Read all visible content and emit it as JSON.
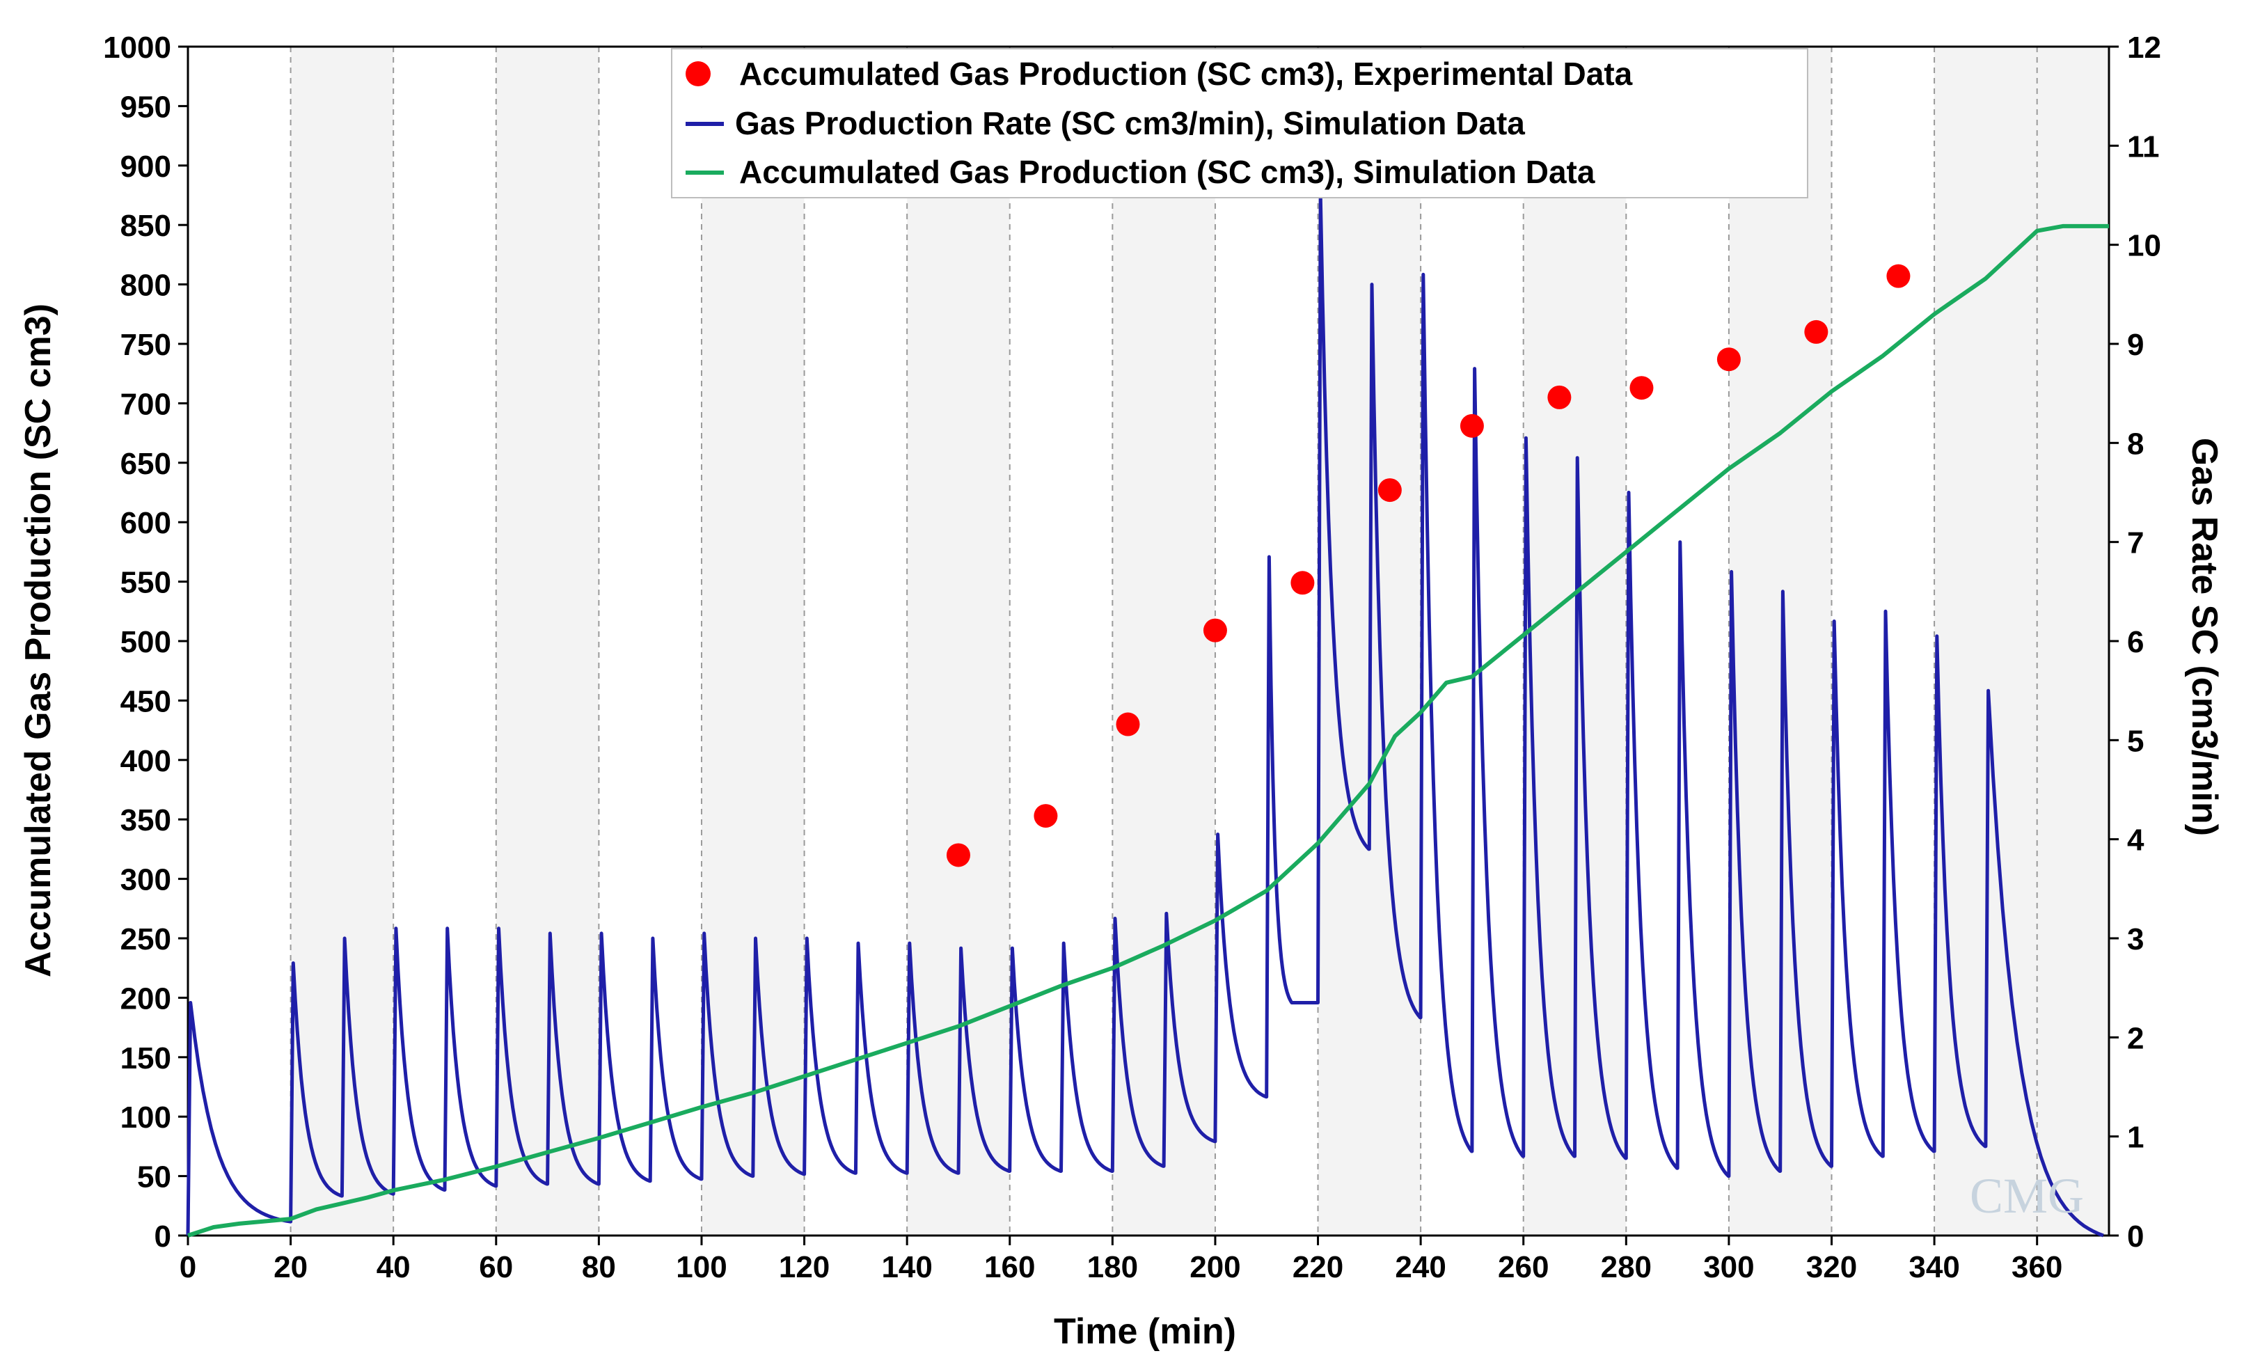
{
  "chart_data": {
    "type": "line",
    "xlabel": "Time (min)",
    "ylabel_left": "Accumulated Gas Production (SC cm3)",
    "ylabel_right": "Gas Rate SC (cm3/min)",
    "xlim": [
      0,
      374
    ],
    "ylim_left": [
      0,
      1000
    ],
    "ylim_right": [
      0,
      12
    ],
    "x_ticks": [
      0,
      20,
      40,
      60,
      80,
      100,
      120,
      140,
      160,
      180,
      200,
      220,
      240,
      260,
      280,
      300,
      320,
      340,
      360
    ],
    "y_left_ticks": [
      0,
      50,
      100,
      150,
      200,
      250,
      300,
      350,
      400,
      450,
      500,
      550,
      600,
      650,
      700,
      750,
      800,
      850,
      900,
      950,
      1000
    ],
    "y_right_ticks": [
      0,
      1,
      2,
      3,
      4,
      5,
      6,
      7,
      8,
      9,
      10,
      11,
      12
    ],
    "shaded_bands": [
      [
        20,
        40
      ],
      [
        60,
        80
      ],
      [
        100,
        120
      ],
      [
        140,
        160
      ],
      [
        180,
        200
      ],
      [
        220,
        240
      ],
      [
        260,
        280
      ],
      [
        300,
        320
      ],
      [
        340,
        374
      ]
    ],
    "legend_location": "top-center",
    "watermark": "CMG",
    "series": [
      {
        "name": "Accumulated Gas Production (SC cm3), Experimental Data",
        "kind": "scatter",
        "axis": "left",
        "color": "#ff0000",
        "points": [
          [
            150,
            320
          ],
          [
            167,
            353
          ],
          [
            183,
            430
          ],
          [
            200,
            509
          ],
          [
            217,
            549
          ],
          [
            234,
            627
          ],
          [
            250,
            681
          ],
          [
            267,
            705
          ],
          [
            283,
            713
          ],
          [
            300,
            737
          ],
          [
            317,
            760
          ],
          [
            333,
            807
          ]
        ]
      },
      {
        "name": "Gas Production Rate (SC cm3/min), Simulation Data",
        "kind": "line",
        "axis": "right",
        "color": "#1f1fa8",
        "pulses": [
          {
            "t0": 0,
            "base": 0.0,
            "peak": 2.35,
            "end": 20,
            "trough": 0.14
          },
          {
            "t0": 20,
            "base": 0.14,
            "peak": 2.75,
            "end": 30,
            "trough": 0.4
          },
          {
            "t0": 30,
            "base": 0.4,
            "peak": 3.0,
            "end": 40,
            "trough": 0.42
          },
          {
            "t0": 40,
            "base": 0.42,
            "peak": 3.1,
            "end": 50,
            "trough": 0.46
          },
          {
            "t0": 50,
            "base": 0.46,
            "peak": 3.1,
            "end": 60,
            "trough": 0.5
          },
          {
            "t0": 60,
            "base": 0.5,
            "peak": 3.1,
            "end": 70,
            "trough": 0.52
          },
          {
            "t0": 70,
            "base": 0.52,
            "peak": 3.05,
            "end": 80,
            "trough": 0.52
          },
          {
            "t0": 80,
            "base": 0.52,
            "peak": 3.05,
            "end": 90,
            "trough": 0.55
          },
          {
            "t0": 90,
            "base": 0.55,
            "peak": 3.0,
            "end": 100,
            "trough": 0.57
          },
          {
            "t0": 100,
            "base": 0.57,
            "peak": 3.05,
            "end": 110,
            "trough": 0.6
          },
          {
            "t0": 110,
            "base": 0.6,
            "peak": 3.0,
            "end": 120,
            "trough": 0.62
          },
          {
            "t0": 120,
            "base": 0.62,
            "peak": 3.0,
            "end": 130,
            "trough": 0.63
          },
          {
            "t0": 130,
            "base": 0.63,
            "peak": 2.95,
            "end": 140,
            "trough": 0.63
          },
          {
            "t0": 140,
            "base": 0.63,
            "peak": 2.95,
            "end": 150,
            "trough": 0.63
          },
          {
            "t0": 150,
            "base": 0.63,
            "peak": 2.9,
            "end": 160,
            "trough": 0.65
          },
          {
            "t0": 160,
            "base": 0.65,
            "peak": 2.9,
            "end": 170,
            "trough": 0.65
          },
          {
            "t0": 170,
            "base": 0.65,
            "peak": 2.95,
            "end": 180,
            "trough": 0.65
          },
          {
            "t0": 180,
            "base": 0.65,
            "peak": 3.2,
            "end": 190,
            "trough": 0.7
          },
          {
            "t0": 190,
            "base": 0.7,
            "peak": 3.25,
            "end": 200,
            "trough": 0.95
          },
          {
            "t0": 200,
            "base": 0.95,
            "peak": 4.05,
            "end": 210,
            "trough": 1.4
          },
          {
            "t0": 210,
            "base": 1.4,
            "peak": 6.85,
            "end": 215,
            "trough": 2.35,
            "hold": 2.35,
            "holdEnd": 220
          },
          {
            "t0": 220,
            "base": 2.35,
            "peak": 10.5,
            "end": 230,
            "trough": 3.9
          },
          {
            "t0": 230,
            "base": 3.9,
            "peak": 9.6,
            "end": 240,
            "trough": 2.2
          },
          {
            "t0": 240,
            "base": 2.2,
            "peak": 9.7,
            "end": 250,
            "trough": 0.85
          },
          {
            "t0": 250,
            "base": 0.85,
            "peak": 8.75,
            "end": 260,
            "trough": 0.8
          },
          {
            "t0": 260,
            "base": 0.8,
            "peak": 8.05,
            "end": 270,
            "trough": 0.8
          },
          {
            "t0": 270,
            "base": 0.8,
            "peak": 7.85,
            "end": 280,
            "trough": 0.78
          },
          {
            "t0": 280,
            "base": 0.78,
            "peak": 7.5,
            "end": 290,
            "trough": 0.68
          },
          {
            "t0": 290,
            "base": 0.68,
            "peak": 7.0,
            "end": 300,
            "trough": 0.6
          },
          {
            "t0": 300,
            "base": 0.6,
            "peak": 6.7,
            "end": 310,
            "trough": 0.65
          },
          {
            "t0": 310,
            "base": 0.65,
            "peak": 6.5,
            "end": 320,
            "trough": 0.7
          },
          {
            "t0": 320,
            "base": 0.7,
            "peak": 6.2,
            "end": 330,
            "trough": 0.8
          },
          {
            "t0": 330,
            "base": 0.8,
            "peak": 6.3,
            "end": 340,
            "trough": 0.85
          },
          {
            "t0": 340,
            "base": 0.85,
            "peak": 6.05,
            "end": 350,
            "trough": 0.9
          },
          {
            "t0": 350,
            "base": 0.9,
            "peak": 5.5,
            "end": 373,
            "trough": 0.0
          }
        ]
      },
      {
        "name": "Accumulated Gas Production (SC cm3), Simulation Data",
        "kind": "line",
        "axis": "left",
        "color": "#1aab5e",
        "points": [
          [
            0,
            0
          ],
          [
            5,
            7
          ],
          [
            10,
            10
          ],
          [
            15,
            12
          ],
          [
            20,
            14
          ],
          [
            25,
            22
          ],
          [
            30,
            27
          ],
          [
            35,
            32
          ],
          [
            40,
            38
          ],
          [
            50,
            47
          ],
          [
            60,
            58
          ],
          [
            70,
            70
          ],
          [
            80,
            82
          ],
          [
            90,
            95
          ],
          [
            100,
            108
          ],
          [
            110,
            120
          ],
          [
            120,
            134
          ],
          [
            130,
            148
          ],
          [
            140,
            162
          ],
          [
            150,
            176
          ],
          [
            160,
            193
          ],
          [
            170,
            210
          ],
          [
            180,
            225
          ],
          [
            190,
            244
          ],
          [
            200,
            265
          ],
          [
            210,
            290
          ],
          [
            220,
            330
          ],
          [
            230,
            380
          ],
          [
            235,
            420
          ],
          [
            240,
            440
          ],
          [
            245,
            465
          ],
          [
            250,
            470
          ],
          [
            260,
            505
          ],
          [
            270,
            540
          ],
          [
            280,
            575
          ],
          [
            290,
            610
          ],
          [
            300,
            645
          ],
          [
            310,
            675
          ],
          [
            320,
            710
          ],
          [
            330,
            740
          ],
          [
            340,
            775
          ],
          [
            350,
            805
          ],
          [
            360,
            845
          ],
          [
            365,
            849
          ],
          [
            374,
            849
          ]
        ]
      }
    ]
  }
}
